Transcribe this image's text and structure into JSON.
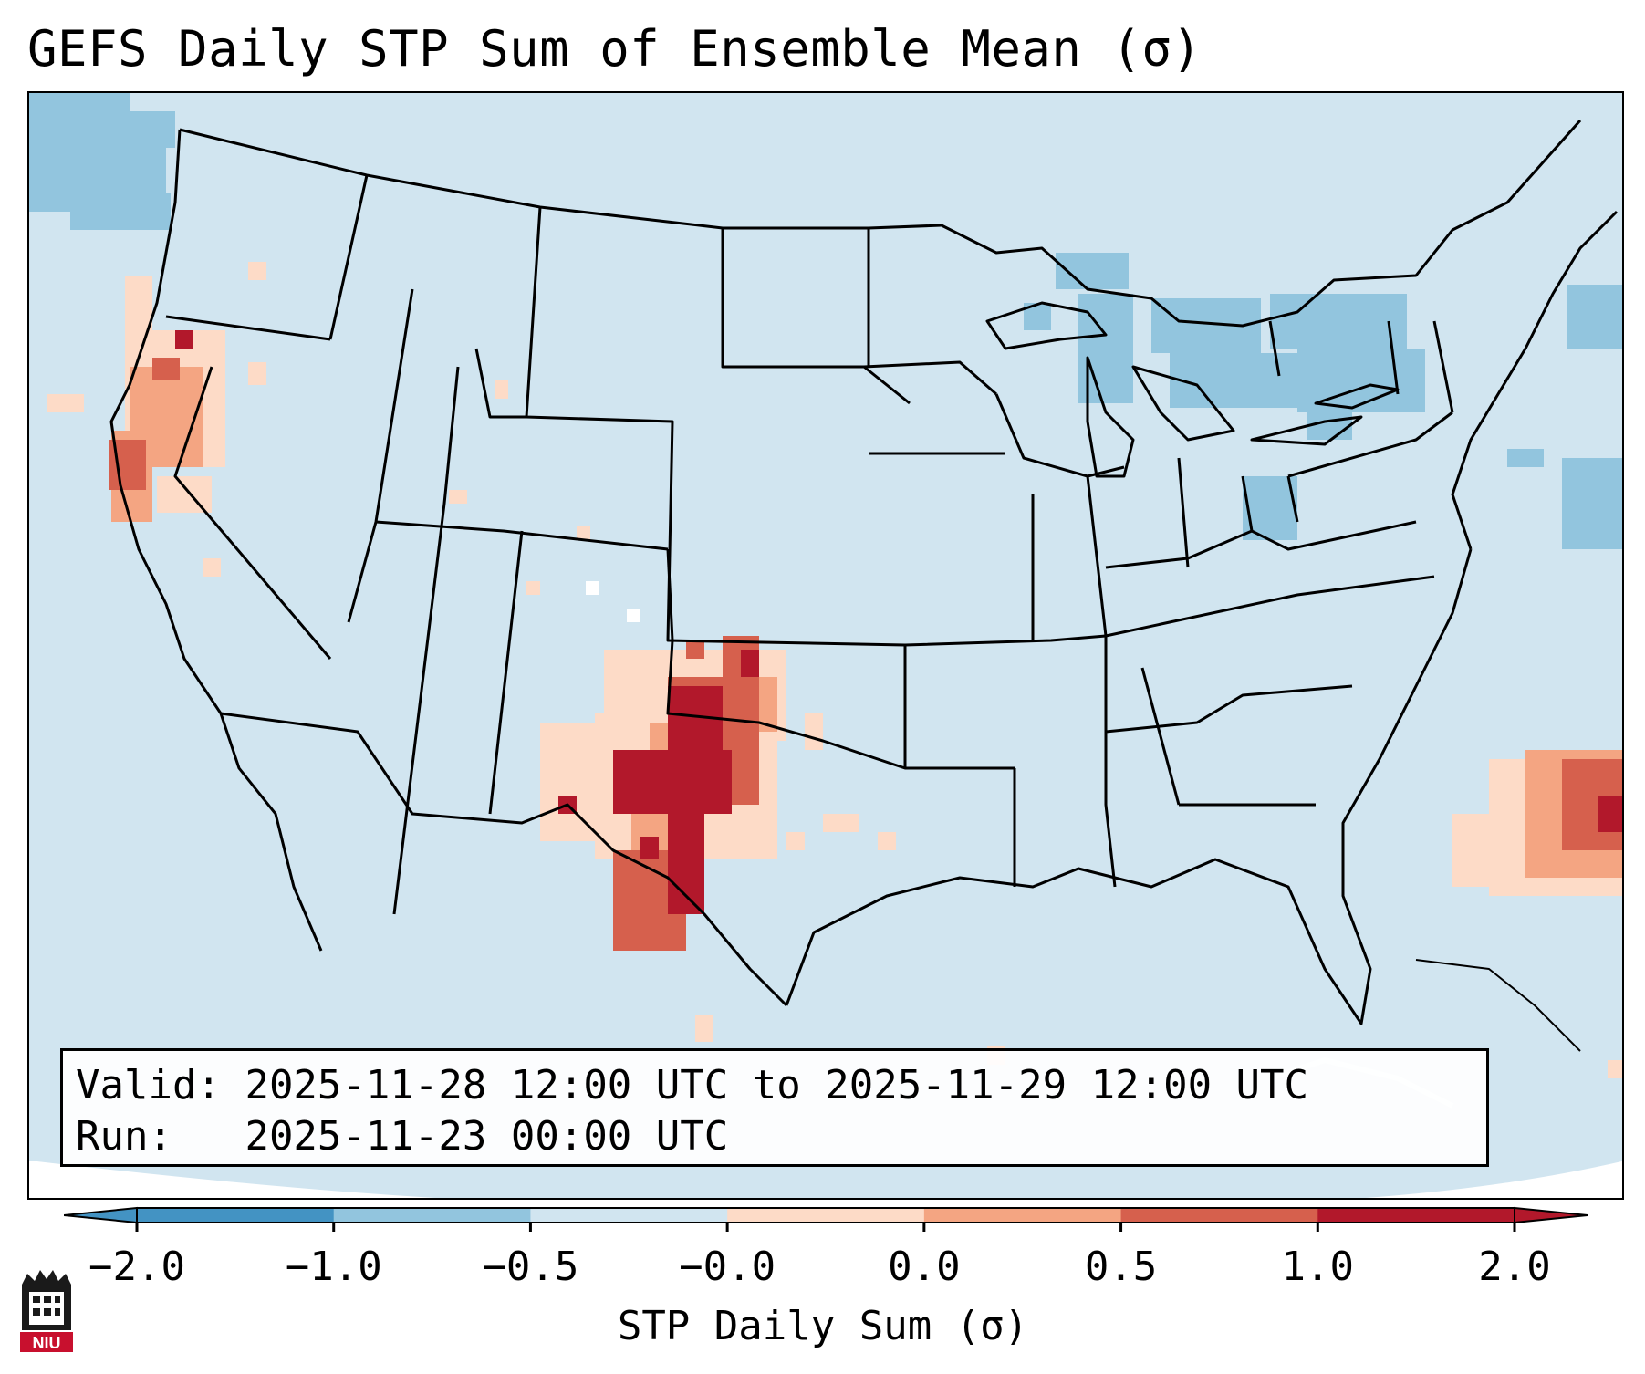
{
  "title": "GEFS Daily STP Sum of Ensemble Mean (σ)",
  "info": {
    "valid_label": "Valid:",
    "valid_value": "2025-11-28 12:00 UTC to 2025-11-29 12:00 UTC",
    "run_label": "Run:",
    "run_value": "2025-11-23 00:00 UTC"
  },
  "colorbar": {
    "title": "STP Daily Sum (σ)",
    "ticks": [
      "−2.0",
      "−1.0",
      "−0.5",
      "−0.0",
      "0.0",
      "0.5",
      "1.0",
      "2.0"
    ],
    "colors": [
      "#4393c3",
      "#92c5de",
      "#d1e5f0",
      "#f7f7f7",
      "#fddbc7",
      "#f4a582",
      "#d6604d",
      "#b2182b"
    ],
    "extend": "both"
  },
  "logo": {
    "text": "NIU",
    "icon": "university-logo-icon"
  },
  "map": {
    "region": "Continental United States, northern Mexico, Gulf of Mexico, western Atlantic",
    "field": "STP daily sum anomaly",
    "regions": [
      {
        "name": "texas-high-anomaly",
        "value": "2.0+"
      },
      {
        "name": "northern-california-oregon-anomaly",
        "value": "1.0–2.0"
      },
      {
        "name": "western-atlantic-anomaly",
        "value": "1.0–2.0"
      },
      {
        "name": "great-lakes-northeast-negative",
        "value": "−1.0 to −0.5"
      },
      {
        "name": "pacific-northwest-negative",
        "value": "−1.0 to −0.5"
      }
    ]
  }
}
